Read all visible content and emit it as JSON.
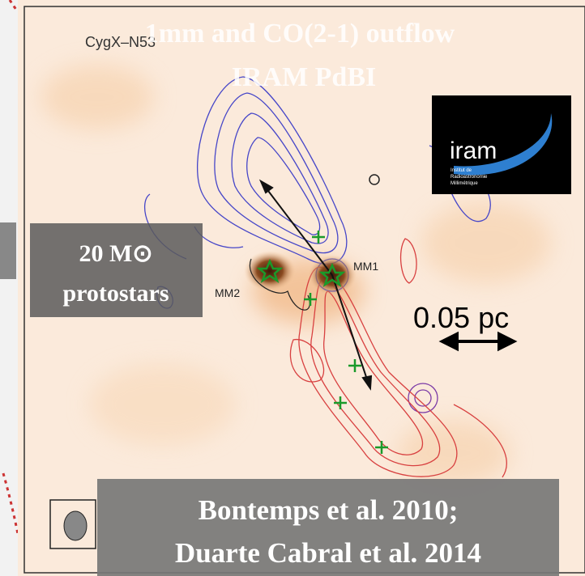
{
  "figure": {
    "field_label": "CygX–N53",
    "title": [
      "1mm and CO(2-1) outflow",
      "IRAM PdBI"
    ],
    "logo": {
      "name": "iram",
      "caption": [
        "Institut de",
        "Radioastronomie",
        "Millimétrique"
      ]
    },
    "sources": [
      "MM1",
      "MM2"
    ],
    "mass_label": [
      "20 M⊙",
      "protostars"
    ],
    "scale_bar": "0.05 pc",
    "references": [
      "Bontemps et al. 2010;",
      "Duarte Cabral et al. 2014"
    ]
  }
}
